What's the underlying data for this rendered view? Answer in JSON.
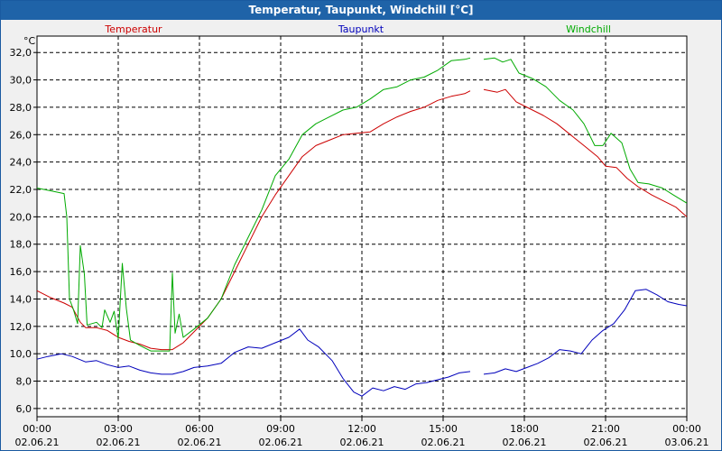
{
  "window": {
    "title": "Temperatur, Taupunkt, Windchill [°C]"
  },
  "colors": {
    "temperatur": "#cc0000",
    "taupunkt": "#0000bb",
    "windchill": "#00aa00",
    "titlebar": "#1f63a8"
  },
  "chart_data": {
    "type": "line",
    "title": "Temperatur, Taupunkt, Windchill [°C]",
    "unit_label": "°C",
    "xlabel": "",
    "ylabel": "°C",
    "xlim": [
      0,
      24
    ],
    "ylim": [
      5.4,
      33.2
    ],
    "grid": true,
    "y_ticks": [
      "6,0",
      "8,0",
      "10,0",
      "12,0",
      "14,0",
      "16,0",
      "18,0",
      "20,0",
      "22,0",
      "24,0",
      "26,0",
      "28,0",
      "30,0",
      "32,0"
    ],
    "x_ticks": [
      {
        "time": "00:00",
        "date": "02.06.21"
      },
      {
        "time": "03:00",
        "date": "02.06.21"
      },
      {
        "time": "06:00",
        "date": "02.06.21"
      },
      {
        "time": "09:00",
        "date": "02.06.21"
      },
      {
        "time": "12:00",
        "date": "02.06.21"
      },
      {
        "time": "15:00",
        "date": "02.06.21"
      },
      {
        "time": "18:00",
        "date": "02.06.21"
      },
      {
        "time": "21:00",
        "date": "02.06.21"
      },
      {
        "time": "00:00",
        "date": "03.06.21"
      }
    ],
    "series": [
      {
        "name": "Temperatur",
        "points": [
          [
            0,
            14.6
          ],
          [
            0.5,
            14.1
          ],
          [
            1,
            13.7
          ],
          [
            1.3,
            13.4
          ],
          [
            1.6,
            12.3
          ],
          [
            1.8,
            11.9
          ],
          [
            2.2,
            11.9
          ],
          [
            2.6,
            11.7
          ],
          [
            3,
            11.2
          ],
          [
            3.4,
            10.9
          ],
          [
            3.8,
            10.7
          ],
          [
            4.2,
            10.4
          ],
          [
            4.6,
            10.3
          ],
          [
            5,
            10.3
          ],
          [
            5.4,
            10.8
          ],
          [
            5.8,
            11.6
          ],
          [
            6.3,
            12.6
          ],
          [
            6.8,
            14.0
          ],
          [
            7.3,
            16.0
          ],
          [
            7.8,
            18.0
          ],
          [
            8.3,
            20.0
          ],
          [
            8.8,
            21.6
          ],
          [
            9.3,
            23.0
          ],
          [
            9.8,
            24.4
          ],
          [
            10.3,
            25.2
          ],
          [
            10.8,
            25.6
          ],
          [
            11.3,
            26.0
          ],
          [
            11.8,
            26.1
          ],
          [
            12.3,
            26.2
          ],
          [
            12.8,
            26.8
          ],
          [
            13.3,
            27.3
          ],
          [
            13.8,
            27.7
          ],
          [
            14.3,
            28.0
          ],
          [
            14.8,
            28.5
          ],
          [
            15.3,
            28.8
          ],
          [
            15.8,
            29.0
          ],
          [
            16.0,
            29.2
          ],
          [
            null,
            null
          ],
          [
            16.5,
            29.3
          ],
          [
            17.0,
            29.1
          ],
          [
            17.3,
            29.3
          ],
          [
            17.7,
            28.4
          ],
          [
            18.2,
            27.9
          ],
          [
            18.7,
            27.4
          ],
          [
            19.2,
            26.8
          ],
          [
            19.7,
            26.0
          ],
          [
            20.2,
            25.2
          ],
          [
            20.7,
            24.4
          ],
          [
            21.0,
            23.7
          ],
          [
            21.4,
            23.6
          ],
          [
            21.8,
            22.8
          ],
          [
            22.2,
            22.2
          ],
          [
            22.7,
            21.6
          ],
          [
            23.2,
            21.1
          ],
          [
            23.6,
            20.7
          ],
          [
            24,
            20.0
          ]
        ]
      },
      {
        "name": "Taupunkt",
        "points": [
          [
            0,
            9.6
          ],
          [
            0.4,
            9.8
          ],
          [
            0.9,
            10.0
          ],
          [
            1.3,
            9.8
          ],
          [
            1.8,
            9.4
          ],
          [
            2.2,
            9.5
          ],
          [
            2.6,
            9.2
          ],
          [
            3,
            9.0
          ],
          [
            3.4,
            9.1
          ],
          [
            3.8,
            8.8
          ],
          [
            4.2,
            8.6
          ],
          [
            4.6,
            8.5
          ],
          [
            5,
            8.5
          ],
          [
            5.4,
            8.7
          ],
          [
            5.8,
            9.0
          ],
          [
            6.3,
            9.1
          ],
          [
            6.8,
            9.3
          ],
          [
            7.3,
            10.1
          ],
          [
            7.8,
            10.5
          ],
          [
            8.3,
            10.4
          ],
          [
            8.8,
            10.8
          ],
          [
            9.3,
            11.2
          ],
          [
            9.7,
            11.8
          ],
          [
            10.0,
            11.0
          ],
          [
            10.4,
            10.5
          ],
          [
            10.9,
            9.5
          ],
          [
            11.3,
            8.2
          ],
          [
            11.7,
            7.2
          ],
          [
            12.0,
            6.9
          ],
          [
            12.4,
            7.5
          ],
          [
            12.8,
            7.3
          ],
          [
            13.2,
            7.6
          ],
          [
            13.6,
            7.4
          ],
          [
            14.0,
            7.8
          ],
          [
            14.4,
            7.9
          ],
          [
            14.8,
            8.1
          ],
          [
            15.2,
            8.3
          ],
          [
            15.6,
            8.6
          ],
          [
            16.0,
            8.7
          ],
          [
            null,
            null
          ],
          [
            16.5,
            8.5
          ],
          [
            16.9,
            8.6
          ],
          [
            17.3,
            8.9
          ],
          [
            17.7,
            8.7
          ],
          [
            18.1,
            9.0
          ],
          [
            18.5,
            9.3
          ],
          [
            18.9,
            9.7
          ],
          [
            19.3,
            10.3
          ],
          [
            19.7,
            10.2
          ],
          [
            20.1,
            10.0
          ],
          [
            20.5,
            11.0
          ],
          [
            20.9,
            11.7
          ],
          [
            21.3,
            12.2
          ],
          [
            21.7,
            13.2
          ],
          [
            22.1,
            14.6
          ],
          [
            22.5,
            14.7
          ],
          [
            22.9,
            14.3
          ],
          [
            23.3,
            13.8
          ],
          [
            23.7,
            13.6
          ],
          [
            24,
            13.5
          ]
        ]
      },
      {
        "name": "Windchill",
        "points": [
          [
            0,
            22.1
          ],
          [
            0.5,
            21.9
          ],
          [
            1,
            21.7
          ],
          [
            1.1,
            20.0
          ],
          [
            1.2,
            14.0
          ],
          [
            1.35,
            13.2
          ],
          [
            1.5,
            12.2
          ],
          [
            1.6,
            17.9
          ],
          [
            1.75,
            15.8
          ],
          [
            1.85,
            12.1
          ],
          [
            2.2,
            12.3
          ],
          [
            2.4,
            11.9
          ],
          [
            2.5,
            13.2
          ],
          [
            2.7,
            12.3
          ],
          [
            2.85,
            13.1
          ],
          [
            3.0,
            11.1
          ],
          [
            3.15,
            16.6
          ],
          [
            3.3,
            13.3
          ],
          [
            3.45,
            11.0
          ],
          [
            3.8,
            10.6
          ],
          [
            4.2,
            10.2
          ],
          [
            4.6,
            10.2
          ],
          [
            4.9,
            10.2
          ],
          [
            5.0,
            15.9
          ],
          [
            5.1,
            11.5
          ],
          [
            5.25,
            12.9
          ],
          [
            5.4,
            11.2
          ],
          [
            5.8,
            11.8
          ],
          [
            6.3,
            12.6
          ],
          [
            6.8,
            14.0
          ],
          [
            7.3,
            16.5
          ],
          [
            7.8,
            18.5
          ],
          [
            8.3,
            20.5
          ],
          [
            8.8,
            23.0
          ],
          [
            9.3,
            24.2
          ],
          [
            9.8,
            26.0
          ],
          [
            10.3,
            26.8
          ],
          [
            10.8,
            27.3
          ],
          [
            11.3,
            27.8
          ],
          [
            11.8,
            28.0
          ],
          [
            12.3,
            28.6
          ],
          [
            12.8,
            29.3
          ],
          [
            13.3,
            29.5
          ],
          [
            13.8,
            30.0
          ],
          [
            14.3,
            30.2
          ],
          [
            14.8,
            30.7
          ],
          [
            15.3,
            31.4
          ],
          [
            15.8,
            31.5
          ],
          [
            16.0,
            31.6
          ],
          [
            null,
            null
          ],
          [
            16.5,
            31.5
          ],
          [
            16.9,
            31.6
          ],
          [
            17.2,
            31.3
          ],
          [
            17.5,
            31.5
          ],
          [
            17.8,
            30.5
          ],
          [
            18.3,
            30.1
          ],
          [
            18.8,
            29.5
          ],
          [
            19.3,
            28.5
          ],
          [
            19.8,
            27.8
          ],
          [
            20.2,
            26.8
          ],
          [
            20.6,
            25.2
          ],
          [
            20.9,
            25.2
          ],
          [
            21.2,
            26.1
          ],
          [
            21.6,
            25.4
          ],
          [
            21.9,
            23.5
          ],
          [
            22.2,
            22.5
          ],
          [
            22.6,
            22.4
          ],
          [
            23.1,
            22.1
          ],
          [
            23.5,
            21.6
          ],
          [
            24,
            21.0
          ]
        ]
      }
    ]
  }
}
